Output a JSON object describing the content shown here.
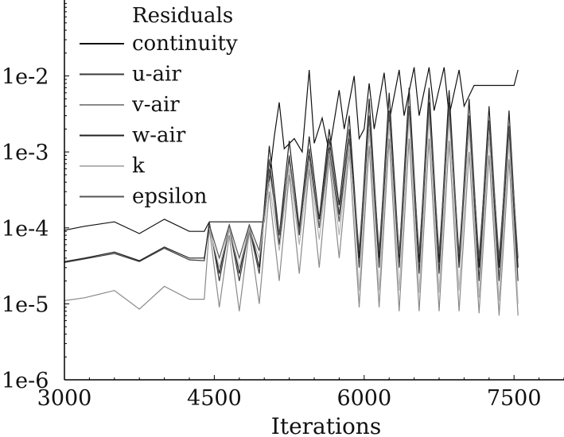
{
  "chart_data": {
    "type": "line",
    "title": "",
    "xlabel": "Iterations",
    "ylabel": "",
    "xlim": [
      3000,
      8000
    ],
    "ylim": [
      1e-06,
      0.1
    ],
    "y_scale": "log",
    "x_ticks": [
      3000,
      4500,
      6000,
      7500
    ],
    "y_ticks": [
      1e-06,
      1e-05,
      0.0001,
      0.001,
      0.01
    ],
    "x_tick_labels": [
      "3000",
      "4500",
      "6000",
      "7500"
    ],
    "y_tick_labels": [
      "1e-6",
      "1e-5",
      "1e-4",
      "1e-3",
      "1e-2"
    ],
    "grid": false,
    "legend_title": "Residuals",
    "legend_position": "top-left",
    "series": [
      {
        "name": "continuity",
        "color": "#111111",
        "points": [
          [
            3000,
            9.3e-05
          ],
          [
            3200,
            0.000105
          ],
          [
            3500,
            0.00012
          ],
          [
            3750,
            8.4e-05
          ],
          [
            4000,
            0.00013
          ],
          [
            4250,
            9e-05
          ],
          [
            4400,
            9e-05
          ],
          [
            4450,
            0.00012
          ],
          [
            4600,
            0.00012
          ],
          [
            4700,
            0.00012
          ],
          [
            4800,
            0.00012
          ],
          [
            4900,
            0.00012
          ],
          [
            5000,
            0.00012
          ],
          [
            5100,
            0.0016
          ],
          [
            5150,
            0.0045
          ],
          [
            5200,
            0.0011
          ],
          [
            5300,
            0.0015
          ],
          [
            5380,
            0.001
          ],
          [
            5450,
            0.012
          ],
          [
            5500,
            0.0013
          ],
          [
            5580,
            0.0028
          ],
          [
            5650,
            0.001
          ],
          [
            5750,
            0.0065
          ],
          [
            5800,
            0.002
          ],
          [
            5900,
            0.01
          ],
          [
            5950,
            0.0015
          ],
          [
            6000,
            0.002
          ],
          [
            6050,
            0.008
          ],
          [
            6100,
            0.002
          ],
          [
            6200,
            0.011
          ],
          [
            6250,
            0.0025
          ],
          [
            6350,
            0.012
          ],
          [
            6400,
            0.003
          ],
          [
            6500,
            0.013
          ],
          [
            6550,
            0.003
          ],
          [
            6650,
            0.013
          ],
          [
            6700,
            0.0035
          ],
          [
            6800,
            0.013
          ],
          [
            6850,
            0.003
          ],
          [
            6950,
            0.012
          ],
          [
            7000,
            0.004
          ],
          [
            7100,
            0.0075
          ],
          [
            7200,
            0.0075
          ],
          [
            7300,
            0.0075
          ],
          [
            7400,
            0.0075
          ],
          [
            7500,
            0.0075
          ],
          [
            7540,
            0.012
          ]
        ]
      },
      {
        "name": "u-air",
        "color": "#3a3a3a",
        "points": [
          [
            3000,
            3.5e-05
          ],
          [
            3200,
            3.9e-05
          ],
          [
            3500,
            4.6e-05
          ],
          [
            3750,
            3.6e-05
          ],
          [
            4000,
            5.4e-05
          ],
          [
            4250,
            3.8e-05
          ],
          [
            4400,
            3.7e-05
          ],
          [
            4450,
            0.00012
          ],
          [
            4550,
            2e-05
          ],
          [
            4650,
            0.0001
          ],
          [
            4750,
            2e-05
          ],
          [
            4850,
            0.0001
          ],
          [
            4950,
            2.5e-05
          ],
          [
            5050,
            0.0008
          ],
          [
            5150,
            6e-05
          ],
          [
            5250,
            0.0009
          ],
          [
            5350,
            8e-05
          ],
          [
            5450,
            0.0011
          ],
          [
            5550,
            0.0001
          ],
          [
            5650,
            0.0015
          ],
          [
            5750,
            0.00015
          ],
          [
            5850,
            0.002
          ],
          [
            5950,
            3e-05
          ],
          [
            6050,
            0.003
          ],
          [
            6150,
            3e-05
          ],
          [
            6250,
            0.0035
          ],
          [
            6350,
            3e-05
          ],
          [
            6450,
            0.004
          ],
          [
            6550,
            2.5e-05
          ],
          [
            6650,
            0.0045
          ],
          [
            6750,
            2.5e-05
          ],
          [
            6850,
            0.0045
          ],
          [
            6950,
            3e-05
          ],
          [
            7050,
            0.003
          ],
          [
            7150,
            2e-05
          ],
          [
            7250,
            0.0025
          ],
          [
            7350,
            2e-05
          ],
          [
            7450,
            0.002
          ],
          [
            7540,
            2e-05
          ]
        ]
      },
      {
        "name": "v-air",
        "color": "#8a8a8a",
        "points": [
          [
            3000,
            1.1e-05
          ],
          [
            3200,
            1.2e-05
          ],
          [
            3500,
            1.5e-05
          ],
          [
            3750,
            8.5e-06
          ],
          [
            4000,
            1.7e-05
          ],
          [
            4250,
            1.15e-05
          ],
          [
            4400,
            1.15e-05
          ],
          [
            4450,
            0.0001
          ],
          [
            4550,
            9e-06
          ],
          [
            4650,
            8e-05
          ],
          [
            4750,
            8e-06
          ],
          [
            4850,
            9e-05
          ],
          [
            4950,
            1e-05
          ],
          [
            5050,
            0.0003
          ],
          [
            5150,
            2e-05
          ],
          [
            5250,
            0.0005
          ],
          [
            5350,
            2.5e-05
          ],
          [
            5450,
            0.0006
          ],
          [
            5550,
            3e-05
          ],
          [
            5650,
            0.0008
          ],
          [
            5750,
            4e-05
          ],
          [
            5850,
            0.001
          ],
          [
            5950,
            9e-06
          ],
          [
            6050,
            0.0012
          ],
          [
            6150,
            9e-06
          ],
          [
            6250,
            0.0015
          ],
          [
            6350,
            8e-06
          ],
          [
            6450,
            0.0015
          ],
          [
            6550,
            8e-06
          ],
          [
            6650,
            0.0015
          ],
          [
            6750,
            8e-06
          ],
          [
            6850,
            0.0014
          ],
          [
            6950,
            8e-06
          ],
          [
            7050,
            0.001
          ],
          [
            7150,
            7.5e-06
          ],
          [
            7250,
            0.0009
          ],
          [
            7350,
            7e-06
          ],
          [
            7450,
            0.0008
          ],
          [
            7540,
            7e-06
          ]
        ]
      },
      {
        "name": "w-air",
        "color": "#222222",
        "points": [
          [
            3000,
            3.6e-05
          ],
          [
            3200,
            4e-05
          ],
          [
            3500,
            4.8e-05
          ],
          [
            3750,
            3.7e-05
          ],
          [
            4000,
            5.6e-05
          ],
          [
            4250,
            4e-05
          ],
          [
            4400,
            4e-05
          ],
          [
            4450,
            0.00011
          ],
          [
            4550,
            2.5e-05
          ],
          [
            4650,
            0.00011
          ],
          [
            4750,
            2.5e-05
          ],
          [
            4850,
            0.00011
          ],
          [
            4950,
            3e-05
          ],
          [
            5050,
            0.0012
          ],
          [
            5150,
            8e-05
          ],
          [
            5250,
            0.0014
          ],
          [
            5350,
            0.0001
          ],
          [
            5450,
            0.0016
          ],
          [
            5550,
            0.00013
          ],
          [
            5650,
            0.002
          ],
          [
            5750,
            0.0002
          ],
          [
            5850,
            0.003
          ],
          [
            5950,
            4e-05
          ],
          [
            6050,
            0.005
          ],
          [
            6150,
            4e-05
          ],
          [
            6250,
            0.006
          ],
          [
            6350,
            4e-05
          ],
          [
            6450,
            0.007
          ],
          [
            6550,
            3.5e-05
          ],
          [
            6650,
            0.007
          ],
          [
            6750,
            3.5e-05
          ],
          [
            6850,
            0.0065
          ],
          [
            6950,
            3.5e-05
          ],
          [
            7050,
            0.005
          ],
          [
            7150,
            3e-05
          ],
          [
            7250,
            0.004
          ],
          [
            7350,
            3e-05
          ],
          [
            7450,
            0.0035
          ],
          [
            7540,
            3e-05
          ]
        ]
      },
      {
        "name": "k",
        "color": "#b4b4b4",
        "points": [
          [
            4450,
            0.0001
          ],
          [
            4550,
            3e-05
          ],
          [
            4650,
            0.0001
          ],
          [
            4750,
            3e-05
          ],
          [
            4850,
            0.0001
          ],
          [
            4950,
            4e-05
          ],
          [
            5050,
            0.0004
          ],
          [
            5150,
            5e-05
          ],
          [
            5250,
            0.0006
          ],
          [
            5350,
            6e-05
          ],
          [
            5450,
            0.0007
          ],
          [
            5550,
            7e-05
          ],
          [
            5650,
            0.0009
          ],
          [
            5750,
            8e-05
          ],
          [
            5850,
            0.0011
          ],
          [
            5950,
            1.5e-05
          ],
          [
            6050,
            0.002
          ],
          [
            6150,
            1.5e-05
          ],
          [
            6250,
            0.0025
          ],
          [
            6350,
            1.5e-05
          ],
          [
            6450,
            0.003
          ],
          [
            6550,
            1.4e-05
          ],
          [
            6650,
            0.003
          ],
          [
            6750,
            1.4e-05
          ],
          [
            6850,
            0.0028
          ],
          [
            6950,
            1.5e-05
          ],
          [
            7050,
            0.002
          ],
          [
            7150,
            1.2e-05
          ],
          [
            7250,
            0.0016
          ],
          [
            7350,
            1.1e-05
          ],
          [
            7450,
            0.0014
          ],
          [
            7540,
            1e-05
          ]
        ]
      },
      {
        "name": "epsilon",
        "color": "#555555",
        "points": [
          [
            4450,
            0.00011
          ],
          [
            4550,
            4e-05
          ],
          [
            4650,
            0.00011
          ],
          [
            4750,
            4e-05
          ],
          [
            4850,
            0.00011
          ],
          [
            4950,
            5e-05
          ],
          [
            5050,
            0.0006
          ],
          [
            5150,
            8e-05
          ],
          [
            5250,
            0.0008
          ],
          [
            5350,
            9e-05
          ],
          [
            5450,
            0.0009
          ],
          [
            5550,
            0.0001
          ],
          [
            5650,
            0.0011
          ],
          [
            5750,
            0.00012
          ],
          [
            5850,
            0.0015
          ],
          [
            5950,
            5e-05
          ],
          [
            6050,
            0.003
          ],
          [
            6150,
            5e-05
          ],
          [
            6250,
            0.0035
          ],
          [
            6350,
            4.5e-05
          ],
          [
            6450,
            0.004
          ],
          [
            6550,
            4.5e-05
          ],
          [
            6650,
            0.004
          ],
          [
            6750,
            4.5e-05
          ],
          [
            6850,
            0.0038
          ],
          [
            6950,
            4.5e-05
          ],
          [
            7050,
            0.003
          ],
          [
            7150,
            4e-05
          ],
          [
            7250,
            0.0026
          ],
          [
            7350,
            4e-05
          ],
          [
            7450,
            0.0022
          ],
          [
            7540,
            4e-05
          ]
        ]
      }
    ]
  }
}
